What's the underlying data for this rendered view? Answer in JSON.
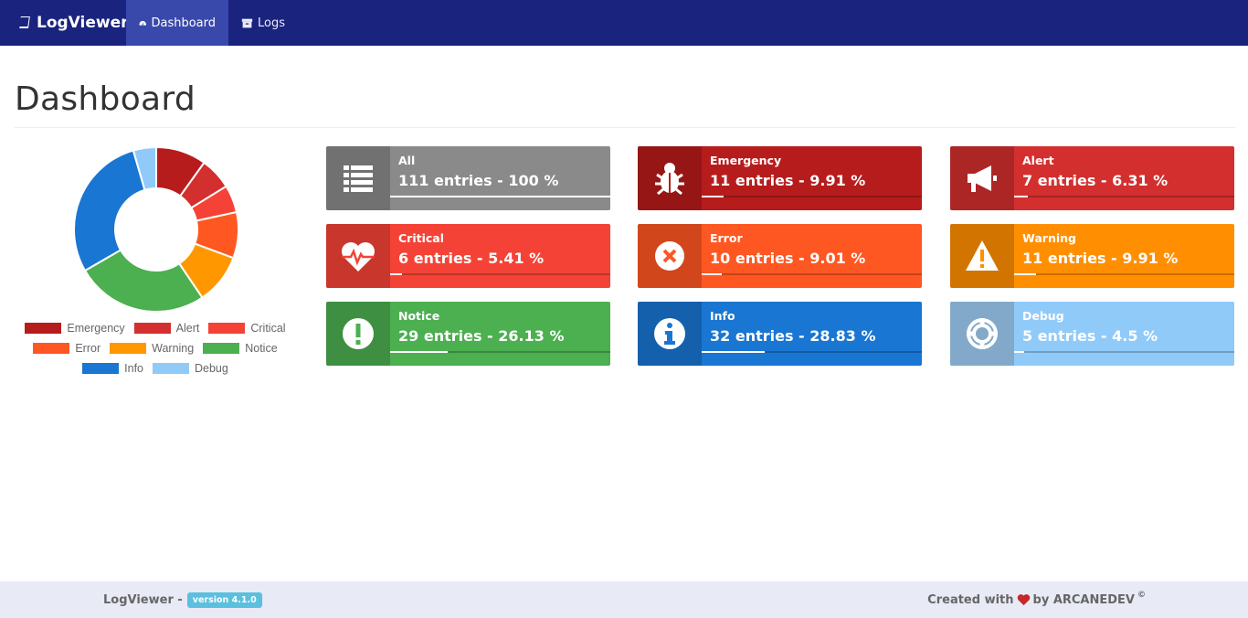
{
  "navbar": {
    "brand": "LogViewer",
    "items": [
      {
        "label": "Dashboard",
        "icon": "dashboard-icon",
        "active": true
      },
      {
        "label": "Logs",
        "icon": "archive-icon",
        "active": false
      }
    ]
  },
  "page": {
    "title": "Dashboard"
  },
  "colors": {
    "navbar": "#1a237e",
    "nav_active": "#3949ab",
    "footer": "#e8eaf6"
  },
  "chart_data": {
    "type": "pie",
    "donut": true,
    "title": "",
    "categories": [
      "Emergency",
      "Alert",
      "Critical",
      "Error",
      "Warning",
      "Notice",
      "Info",
      "Debug"
    ],
    "values": [
      11,
      7,
      6,
      10,
      11,
      29,
      32,
      5
    ],
    "colors": [
      "#b71c1c",
      "#d32f2f",
      "#f44336",
      "#ff5722",
      "#ff9800",
      "#4caf50",
      "#1976d2",
      "#90caf9"
    ],
    "legend_position": "bottom"
  },
  "stats": [
    {
      "key": "all",
      "label": "All",
      "value": "111 entries - 100 %",
      "percent": 100,
      "color": "#8a8a8a",
      "icon": "list-icon"
    },
    {
      "key": "emergency",
      "label": "Emergency",
      "value": "11 entries - 9.91 %",
      "percent": 9.91,
      "color": "#b71c1c",
      "icon": "bug-icon"
    },
    {
      "key": "alert",
      "label": "Alert",
      "value": "7 entries - 6.31 %",
      "percent": 6.31,
      "color": "#d32f2f",
      "icon": "bullhorn-icon"
    },
    {
      "key": "critical",
      "label": "Critical",
      "value": "6 entries - 5.41 %",
      "percent": 5.41,
      "color": "#f44336",
      "icon": "heartbeat-icon"
    },
    {
      "key": "error",
      "label": "Error",
      "value": "10 entries - 9.01 %",
      "percent": 9.01,
      "color": "#ff5722",
      "icon": "times-circle-icon"
    },
    {
      "key": "warning",
      "label": "Warning",
      "value": "11 entries - 9.91 %",
      "percent": 9.91,
      "color": "#ff8f00",
      "icon": "warning-icon"
    },
    {
      "key": "notice",
      "label": "Notice",
      "value": "29 entries - 26.13 %",
      "percent": 26.13,
      "color": "#4caf50",
      "icon": "exclamation-circle-icon"
    },
    {
      "key": "info",
      "label": "Info",
      "value": "32 entries - 28.83 %",
      "percent": 28.83,
      "color": "#1976d2",
      "icon": "info-circle-icon"
    },
    {
      "key": "debug",
      "label": "Debug",
      "value": "5 entries - 4.5 %",
      "percent": 4.5,
      "color": "#90caf9",
      "icon": "life-ring-icon"
    }
  ],
  "footer": {
    "app": "LogViewer -",
    "version": "version 4.1.0",
    "created_with": "Created with",
    "by": "by ARCANEDEV",
    "copyright": "©"
  }
}
